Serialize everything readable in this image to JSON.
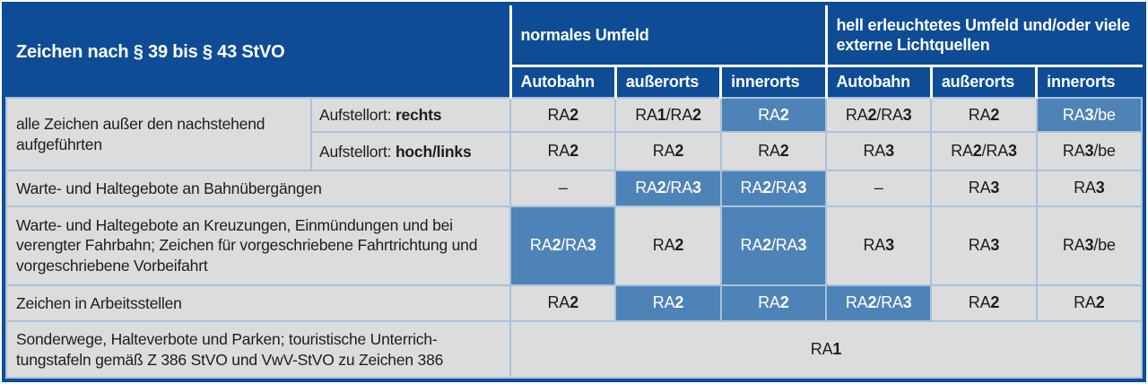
{
  "colors": {
    "header_bg": "#0e4c96",
    "highlight_bg": "#4e83b7",
    "cell_bg": "#dcdcdc",
    "grid_line": "#a9c2dc",
    "header_text": "#ffffff",
    "body_text": "#1d1d1b"
  },
  "header": {
    "main": "Zeichen nach § 39 bis § 43 StVO",
    "groups": [
      {
        "label": "normales Umfeld"
      },
      {
        "label": "hell erleuchtetes Umfeld und/oder viele externe Lichtquellen"
      }
    ],
    "columns": [
      "Autobahn",
      "außerorts",
      "innerorts",
      "Autobahn",
      "außerorts",
      "innerorts"
    ]
  },
  "rows": [
    {
      "name": "row-alle-zeichen-rechts",
      "cells": [
        {
          "kind": "label",
          "text": "alle Zeichen außer den nachstehend aufgeführten",
          "rowspan": 2
        },
        {
          "kind": "sublabel",
          "prefix": "Aufstellort: ",
          "bold": "rechts"
        },
        {
          "kind": "value",
          "text": "RA2"
        },
        {
          "kind": "value",
          "text": "RA1/RA2"
        },
        {
          "kind": "value",
          "text": "RA2",
          "highlight": true
        },
        {
          "kind": "value",
          "text": "RA2/RA3"
        },
        {
          "kind": "value",
          "text": "RA2"
        },
        {
          "kind": "value",
          "text": "RA3/be",
          "highlight": true
        }
      ]
    },
    {
      "name": "row-alle-zeichen-hoch-links",
      "cells": [
        {
          "kind": "sublabel",
          "prefix": "Aufstellort: ",
          "bold": "hoch/links"
        },
        {
          "kind": "value",
          "text": "RA2"
        },
        {
          "kind": "value",
          "text": "RA2"
        },
        {
          "kind": "value",
          "text": "RA2"
        },
        {
          "kind": "value",
          "text": "RA3"
        },
        {
          "kind": "value",
          "text": "RA2/RA3"
        },
        {
          "kind": "value",
          "text": "RA3/be"
        }
      ]
    },
    {
      "name": "row-bahnuebergaenge",
      "cells": [
        {
          "kind": "label",
          "text": "Warte- und Haltegebote an Bahnübergängen",
          "colspan": 2
        },
        {
          "kind": "value",
          "text": "–"
        },
        {
          "kind": "value",
          "text": "RA2/RA3",
          "highlight": true
        },
        {
          "kind": "value",
          "text": "RA2/RA3",
          "highlight": true
        },
        {
          "kind": "value",
          "text": "–"
        },
        {
          "kind": "value",
          "text": "RA3"
        },
        {
          "kind": "value",
          "text": "RA3"
        }
      ]
    },
    {
      "name": "row-kreuzungen",
      "cells": [
        {
          "kind": "label",
          "text": "Warte- und Haltegebote an Kreuzungen, Einmündungen und bei verengter Fahrbahn; Zeichen für vorgeschriebene Fahrtrichtung und vorgeschriebene Vorbeifahrt",
          "colspan": 2
        },
        {
          "kind": "value",
          "text": "RA2/RA3",
          "highlight": true
        },
        {
          "kind": "value",
          "text": "RA2"
        },
        {
          "kind": "value",
          "text": "RA2/RA3",
          "highlight": true
        },
        {
          "kind": "value",
          "text": "RA3"
        },
        {
          "kind": "value",
          "text": "RA3"
        },
        {
          "kind": "value",
          "text": "RA3/be"
        }
      ]
    },
    {
      "name": "row-arbeitsstellen",
      "cells": [
        {
          "kind": "label",
          "text": "Zeichen in Arbeitsstellen",
          "colspan": 2
        },
        {
          "kind": "value",
          "text": "RA2"
        },
        {
          "kind": "value",
          "text": "RA2",
          "highlight": true
        },
        {
          "kind": "value",
          "text": "RA2",
          "highlight": true
        },
        {
          "kind": "value",
          "text": "RA2/RA3",
          "highlight": true
        },
        {
          "kind": "value",
          "text": "RA2"
        },
        {
          "kind": "value",
          "text": "RA2"
        }
      ]
    },
    {
      "name": "row-sonderwege",
      "cells": [
        {
          "kind": "label",
          "text": "Sonderwege, Halteverbote und Parken; touristische Unterrich­tungstafeln gemäß Z 386 StVO und VwV-StVO zu Zeichen 386",
          "colspan": 2
        },
        {
          "kind": "value",
          "text": "RA1",
          "colspan": 6
        }
      ]
    }
  ]
}
